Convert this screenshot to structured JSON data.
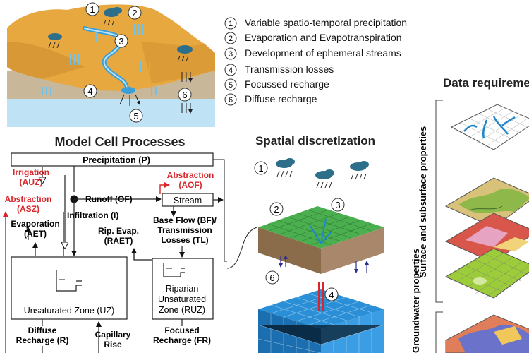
{
  "colors": {
    "terrain": "#e8a840",
    "terrain_dark": "#c98a2c",
    "water": "#3a9fd8",
    "aquifer": "#bfe3f5",
    "soil": "#c9b79a",
    "red": "#d9262c",
    "surface_green": "#4caf4f",
    "grid_blue": "#2a8fd6"
  },
  "legend": {
    "items": [
      {
        "num": "1",
        "label": "Variable spatio-temporal precipitation"
      },
      {
        "num": "2",
        "label": "Evaporation and Evapotranspiration"
      },
      {
        "num": "3",
        "label": "Development of ephemeral streams"
      },
      {
        "num": "4",
        "label": "Transmission losses"
      },
      {
        "num": "5",
        "label": "Focussed recharge"
      },
      {
        "num": "6",
        "label": "Diffuse recharge"
      }
    ]
  },
  "landscape": {
    "markers": [
      "1",
      "2",
      "3",
      "4",
      "5",
      "6"
    ]
  },
  "cell_processes": {
    "title": "Model Cell Processes",
    "precipitation": "Precipitation (P)",
    "irrigation": [
      "Irrigation",
      "(AUZ)"
    ],
    "abstraction_sz": [
      "Abstraction",
      "(ASZ)"
    ],
    "evaporation": [
      "Evaporation",
      "(AET)"
    ],
    "runoff": "Runoff (OF)",
    "abstraction_of": [
      "Abstraction",
      "(AOF)"
    ],
    "stream": "Stream",
    "infiltration": "Infiltration (I)",
    "rip_evap": [
      "Rip. Evap.",
      "(RAET)"
    ],
    "baseflow": [
      "Base Flow (BF)/",
      "Transmission",
      "Losses (TL)"
    ],
    "uz": "Unsaturated Zone (UZ)",
    "ruz": [
      "Riparian",
      "Unsaturated",
      "Zone (RUZ)"
    ],
    "diffuse": [
      "Diffuse",
      "Recharge (R)"
    ],
    "capillary": [
      "Capillary",
      "Rise"
    ],
    "focused": [
      "Focused",
      "Recharge (FR)"
    ]
  },
  "spatial": {
    "title": "Spatial discretization",
    "markers": [
      "1",
      "2",
      "3",
      "4",
      "6"
    ]
  },
  "data_req": {
    "title": "Data requirements",
    "side_label": "Surface and subsurface properties",
    "side_label2": "Groundwater properties"
  }
}
